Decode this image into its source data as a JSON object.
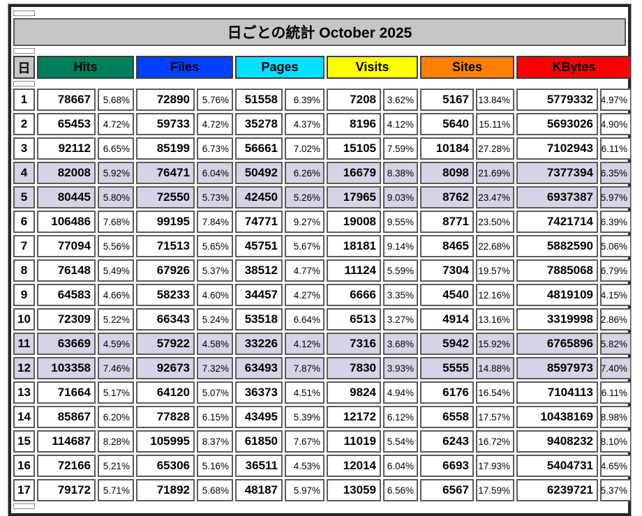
{
  "chart_data": {
    "type": "table",
    "title": "日ごとの統計 October 2025",
    "day_column_header": "日",
    "categories": [
      "1",
      "2",
      "3",
      "4",
      "5",
      "6",
      "7",
      "8",
      "9",
      "10",
      "11",
      "12",
      "13",
      "14",
      "15",
      "16",
      "17"
    ],
    "weekend_days": [
      4,
      5,
      11,
      12
    ],
    "series": [
      {
        "name": "Hits",
        "color": "#00805C",
        "values": [
          78667,
          65453,
          92112,
          82008,
          80445,
          106486,
          77094,
          76148,
          64583,
          72309,
          63669,
          103358,
          71664,
          85867,
          114687,
          72166,
          79172
        ],
        "percents": [
          "5.68%",
          "4.72%",
          "6.65%",
          "5.92%",
          "5.80%",
          "7.68%",
          "5.56%",
          "5.49%",
          "4.66%",
          "5.22%",
          "4.59%",
          "7.46%",
          "5.17%",
          "6.20%",
          "8.28%",
          "5.21%",
          "5.71%"
        ]
      },
      {
        "name": "Files",
        "color": "#0040FF",
        "values": [
          72890,
          59733,
          85199,
          76471,
          72550,
          99195,
          71513,
          67926,
          58233,
          66343,
          57922,
          92673,
          64120,
          77828,
          105995,
          65306,
          71892
        ],
        "percents": [
          "5.76%",
          "4.72%",
          "6.73%",
          "6.04%",
          "5.73%",
          "7.84%",
          "5.65%",
          "5.37%",
          "4.60%",
          "5.24%",
          "4.58%",
          "7.32%",
          "5.07%",
          "6.15%",
          "8.37%",
          "5.16%",
          "5.68%"
        ]
      },
      {
        "name": "Pages",
        "color": "#00E0FF",
        "values": [
          51558,
          35278,
          56661,
          50492,
          42450,
          74771,
          45751,
          38512,
          34457,
          53518,
          33226,
          63493,
          36373,
          43495,
          61850,
          36511,
          48187
        ],
        "percents": [
          "6.39%",
          "4.37%",
          "7.02%",
          "6.26%",
          "5.26%",
          "9.27%",
          "5.67%",
          "4.77%",
          "4.27%",
          "6.64%",
          "4.12%",
          "7.87%",
          "4.51%",
          "5.39%",
          "7.67%",
          "4.53%",
          "5.97%"
        ]
      },
      {
        "name": "Visits",
        "color": "#FFFF00",
        "values": [
          7208,
          8196,
          15105,
          16679,
          17965,
          19008,
          18181,
          11124,
          6666,
          6513,
          7316,
          7830,
          9824,
          12172,
          11019,
          12014,
          13059
        ],
        "percents": [
          "3.62%",
          "4.12%",
          "7.59%",
          "8.38%",
          "9.03%",
          "9.55%",
          "9.14%",
          "5.59%",
          "3.35%",
          "3.27%",
          "3.68%",
          "3.93%",
          "4.94%",
          "6.12%",
          "5.54%",
          "6.04%",
          "6.56%"
        ]
      },
      {
        "name": "Sites",
        "color": "#FF8000",
        "values": [
          5167,
          5640,
          10184,
          8098,
          8762,
          8771,
          8465,
          7304,
          4540,
          4914,
          5942,
          5555,
          6176,
          6558,
          6243,
          6693,
          6567
        ],
        "percents": [
          "13.84%",
          "15.11%",
          "27.28%",
          "21.69%",
          "23.47%",
          "23.50%",
          "22.68%",
          "19.57%",
          "12.16%",
          "13.16%",
          "15.92%",
          "14.88%",
          "16.54%",
          "17.57%",
          "16.72%",
          "17.93%",
          "17.59%"
        ]
      },
      {
        "name": "KBytes",
        "color": "#FF0000",
        "values": [
          5779332,
          5693026,
          7102943,
          7377394,
          6937387,
          7421714,
          5882590,
          7885068,
          4819109,
          3319998,
          6765896,
          8597973,
          7104113,
          10438169,
          9408232,
          5404731,
          6239721
        ],
        "percents": [
          "4.97%",
          "4.90%",
          "6.11%",
          "6.35%",
          "5.97%",
          "6.39%",
          "5.06%",
          "6.79%",
          "4.15%",
          "2.86%",
          "5.82%",
          "7.40%",
          "6.11%",
          "8.98%",
          "8.10%",
          "4.65%",
          "5.37%"
        ]
      }
    ]
  },
  "colors": {
    "title_bg": "#C6C6C6",
    "day_header_bg": "#C6C6C6",
    "weekend_row_bg": "#D4D4E6",
    "cell_bg": "#FFFFFF"
  }
}
